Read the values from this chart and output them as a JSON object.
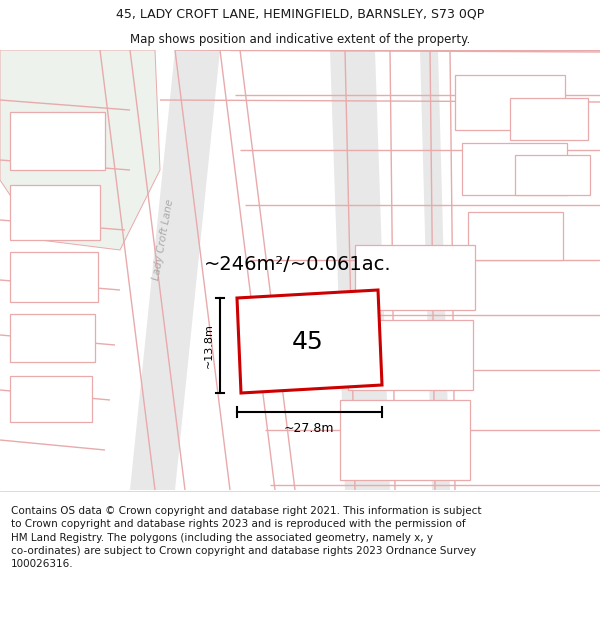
{
  "title_line1": "45, LADY CROFT LANE, HEMINGFIELD, BARNSLEY, S73 0QP",
  "title_line2": "Map shows position and indicative extent of the property.",
  "footer_text": "Contains OS data © Crown copyright and database right 2021. This information is subject to Crown copyright and database rights 2023 and is reproduced with the permission of HM Land Registry. The polygons (including the associated geometry, namely x, y co-ordinates) are subject to Crown copyright and database rights 2023 Ordnance Survey 100026316.",
  "area_label": "~246m²/~0.061ac.",
  "plot_number": "45",
  "width_label": "~27.8m",
  "height_label": "~13.8m",
  "street_label": "Lady Croft Lane",
  "bg_color": "#ffffff",
  "map_bg": "#f8f8f8",
  "road_surface": "#e8e8e8",
  "road_line_color": "#e8aaaa",
  "plot_border_color": "#cc0000",
  "plot_fill": "#ffffff",
  "annotation_color": "#1a1a1a",
  "title_color": "#1a1a1a",
  "footer_color": "#1a1a1a",
  "green_area_color": "#edf2ed",
  "street_label_color": "#aaaaaa"
}
